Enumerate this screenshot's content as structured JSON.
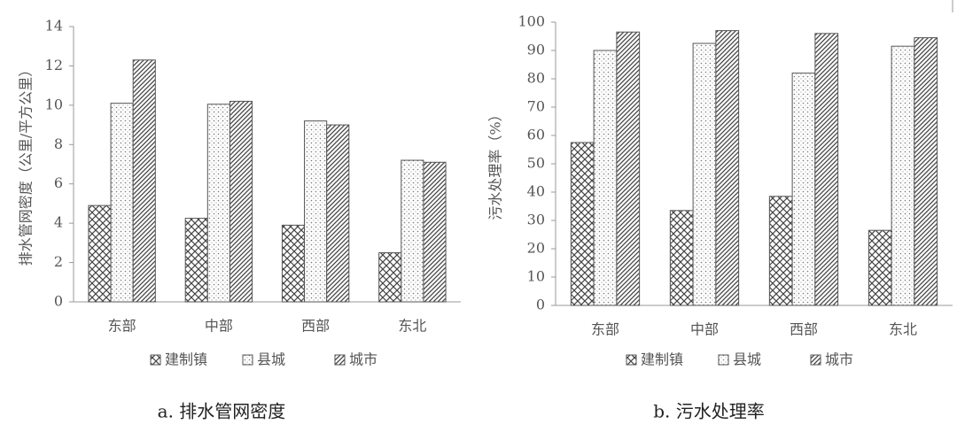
{
  "chart_data": [
    {
      "type": "bar",
      "title": "a. 排水管网密度",
      "y_label": "排水管网密度（公里/平方公里）",
      "categories": [
        "东部",
        "中部",
        "西部",
        "东北"
      ],
      "series": [
        {
          "name": "建制镇",
          "color": "#555555",
          "pattern": "crosshatch",
          "values": [
            4.9,
            4.25,
            3.9,
            2.5
          ]
        },
        {
          "name": "县城",
          "color": "#555555",
          "pattern": "dots",
          "values": [
            10.1,
            10.05,
            9.2,
            7.2
          ]
        },
        {
          "name": "城市",
          "color": "#555555",
          "pattern": "diagonal",
          "values": [
            12.3,
            10.2,
            9.0,
            7.1
          ]
        }
      ],
      "ylim": [
        0,
        14
      ],
      "yticks": [
        0,
        2,
        4,
        6,
        8,
        10,
        12,
        14
      ],
      "grid": false
    },
    {
      "type": "bar",
      "title": "b. 污水处理率",
      "y_label": "污水处理率（%）",
      "categories": [
        "东部",
        "中部",
        "西部",
        "东北"
      ],
      "series": [
        {
          "name": "建制镇",
          "color": "#555555",
          "pattern": "crosshatch",
          "values": [
            57.5,
            33.5,
            38.5,
            26.5
          ]
        },
        {
          "name": "县城",
          "color": "#555555",
          "pattern": "dots",
          "values": [
            90,
            92.5,
            82,
            91.5
          ]
        },
        {
          "name": "城市",
          "color": "#555555",
          "pattern": "diagonal",
          "values": [
            96.5,
            97,
            96,
            94.5
          ]
        }
      ],
      "ylim": [
        0,
        100
      ],
      "yticks": [
        0,
        10,
        20,
        30,
        40,
        50,
        60,
        70,
        80,
        90,
        100
      ],
      "grid": false
    }
  ]
}
